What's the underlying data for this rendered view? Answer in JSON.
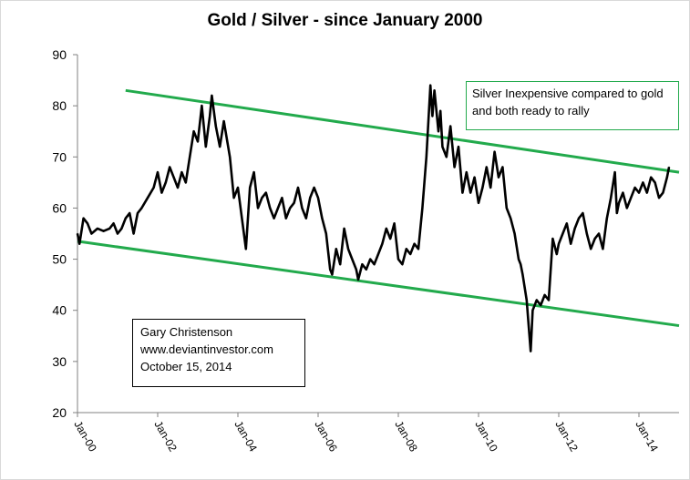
{
  "chart_data": {
    "type": "line",
    "title": "Gold / Silver - since January 2000",
    "xlabel": "",
    "ylabel": "",
    "ylim": [
      20,
      90
    ],
    "yticks": [
      20,
      30,
      40,
      50,
      60,
      70,
      80,
      90
    ],
    "xlim": [
      2000.0,
      2015.0
    ],
    "xticks": [
      {
        "label": "Jan-00",
        "value": 2000
      },
      {
        "label": "Jan-02",
        "value": 2002
      },
      {
        "label": "Jan-04",
        "value": 2004
      },
      {
        "label": "Jan-06",
        "value": 2006
      },
      {
        "label": "Jan-08",
        "value": 2008
      },
      {
        "label": "Jan-10",
        "value": 2010
      },
      {
        "label": "Jan-12",
        "value": 2012
      },
      {
        "label": "Jan-14",
        "value": 2014
      }
    ],
    "series": [
      {
        "name": "Gold / Silver ratio",
        "color": "#000000",
        "points": [
          [
            2000.0,
            55
          ],
          [
            2000.05,
            53
          ],
          [
            2000.15,
            58
          ],
          [
            2000.25,
            57
          ],
          [
            2000.35,
            55
          ],
          [
            2000.5,
            56
          ],
          [
            2000.65,
            55.5
          ],
          [
            2000.8,
            56
          ],
          [
            2000.9,
            57
          ],
          [
            2001.0,
            55
          ],
          [
            2001.1,
            56
          ],
          [
            2001.2,
            58
          ],
          [
            2001.3,
            59
          ],
          [
            2001.4,
            55
          ],
          [
            2001.5,
            59
          ],
          [
            2001.6,
            60
          ],
          [
            2001.75,
            62
          ],
          [
            2001.9,
            64
          ],
          [
            2002.0,
            67
          ],
          [
            2002.1,
            63
          ],
          [
            2002.2,
            65
          ],
          [
            2002.3,
            68
          ],
          [
            2002.4,
            66
          ],
          [
            2002.5,
            64
          ],
          [
            2002.6,
            67
          ],
          [
            2002.7,
            65
          ],
          [
            2002.8,
            70
          ],
          [
            2002.9,
            75
          ],
          [
            2003.0,
            73
          ],
          [
            2003.1,
            80
          ],
          [
            2003.2,
            72
          ],
          [
            2003.3,
            78
          ],
          [
            2003.35,
            82
          ],
          [
            2003.45,
            76
          ],
          [
            2003.55,
            72
          ],
          [
            2003.65,
            77
          ],
          [
            2003.8,
            70
          ],
          [
            2003.9,
            62
          ],
          [
            2004.0,
            64
          ],
          [
            2004.1,
            58
          ],
          [
            2004.2,
            52
          ],
          [
            2004.3,
            64
          ],
          [
            2004.4,
            67
          ],
          [
            2004.5,
            60
          ],
          [
            2004.6,
            62
          ],
          [
            2004.7,
            63
          ],
          [
            2004.8,
            60
          ],
          [
            2004.9,
            58
          ],
          [
            2005.0,
            60
          ],
          [
            2005.1,
            62
          ],
          [
            2005.2,
            58
          ],
          [
            2005.3,
            60
          ],
          [
            2005.4,
            61
          ],
          [
            2005.5,
            64
          ],
          [
            2005.6,
            60
          ],
          [
            2005.7,
            58
          ],
          [
            2005.8,
            62
          ],
          [
            2005.9,
            64
          ],
          [
            2006.0,
            62
          ],
          [
            2006.1,
            58
          ],
          [
            2006.2,
            55
          ],
          [
            2006.3,
            48
          ],
          [
            2006.35,
            47
          ],
          [
            2006.45,
            52
          ],
          [
            2006.55,
            49
          ],
          [
            2006.65,
            56
          ],
          [
            2006.75,
            52
          ],
          [
            2006.85,
            50
          ],
          [
            2006.95,
            48
          ],
          [
            2007.0,
            46
          ],
          [
            2007.1,
            49
          ],
          [
            2007.2,
            48
          ],
          [
            2007.3,
            50
          ],
          [
            2007.4,
            49
          ],
          [
            2007.5,
            51
          ],
          [
            2007.6,
            53
          ],
          [
            2007.7,
            56
          ],
          [
            2007.8,
            54
          ],
          [
            2007.9,
            57
          ],
          [
            2008.0,
            50
          ],
          [
            2008.1,
            49
          ],
          [
            2008.2,
            52
          ],
          [
            2008.3,
            51
          ],
          [
            2008.4,
            53
          ],
          [
            2008.5,
            52
          ],
          [
            2008.6,
            60
          ],
          [
            2008.7,
            70
          ],
          [
            2008.75,
            77
          ],
          [
            2008.8,
            84
          ],
          [
            2008.85,
            78
          ],
          [
            2008.9,
            83
          ],
          [
            2009.0,
            75
          ],
          [
            2009.05,
            79
          ],
          [
            2009.1,
            72
          ],
          [
            2009.2,
            70
          ],
          [
            2009.3,
            76
          ],
          [
            2009.4,
            68
          ],
          [
            2009.5,
            72
          ],
          [
            2009.6,
            63
          ],
          [
            2009.7,
            67
          ],
          [
            2009.8,
            63
          ],
          [
            2009.9,
            66
          ],
          [
            2010.0,
            61
          ],
          [
            2010.1,
            64
          ],
          [
            2010.2,
            68
          ],
          [
            2010.3,
            64
          ],
          [
            2010.4,
            71
          ],
          [
            2010.5,
            66
          ],
          [
            2010.6,
            68
          ],
          [
            2010.7,
            60
          ],
          [
            2010.8,
            58
          ],
          [
            2010.9,
            55
          ],
          [
            2011.0,
            50
          ],
          [
            2011.05,
            49
          ],
          [
            2011.1,
            47
          ],
          [
            2011.2,
            42
          ],
          [
            2011.25,
            37
          ],
          [
            2011.3,
            32
          ],
          [
            2011.35,
            40
          ],
          [
            2011.45,
            42
          ],
          [
            2011.55,
            41
          ],
          [
            2011.65,
            43
          ],
          [
            2011.75,
            42
          ],
          [
            2011.85,
            54
          ],
          [
            2011.95,
            51
          ],
          [
            2012.0,
            53
          ],
          [
            2012.1,
            55
          ],
          [
            2012.2,
            57
          ],
          [
            2012.3,
            53
          ],
          [
            2012.4,
            56
          ],
          [
            2012.5,
            58
          ],
          [
            2012.6,
            59
          ],
          [
            2012.7,
            55
          ],
          [
            2012.8,
            52
          ],
          [
            2012.9,
            54
          ],
          [
            2013.0,
            55
          ],
          [
            2013.1,
            52
          ],
          [
            2013.2,
            58
          ],
          [
            2013.3,
            62
          ],
          [
            2013.4,
            67
          ],
          [
            2013.45,
            59
          ],
          [
            2013.5,
            61
          ],
          [
            2013.6,
            63
          ],
          [
            2013.7,
            60
          ],
          [
            2013.8,
            62
          ],
          [
            2013.9,
            64
          ],
          [
            2014.0,
            63
          ],
          [
            2014.1,
            65
          ],
          [
            2014.2,
            63
          ],
          [
            2014.3,
            66
          ],
          [
            2014.4,
            65
          ],
          [
            2014.5,
            62
          ],
          [
            2014.6,
            63
          ],
          [
            2014.7,
            66
          ],
          [
            2014.75,
            68
          ]
        ]
      }
    ],
    "trendlines": [
      {
        "name": "upper channel",
        "color": "#22aa4c",
        "from": [
          2001.2,
          83
        ],
        "to": [
          2015.0,
          67
        ]
      },
      {
        "name": "lower channel",
        "color": "#22aa4c",
        "from": [
          2000.0,
          53.5
        ],
        "to": [
          2015.0,
          37
        ]
      }
    ],
    "annotations": {
      "note_lines": [
        "Silver Inexpensive compared to gold",
        "and both ready to rally"
      ],
      "credit_lines": [
        "Gary Christenson",
        "www.deviantinvestor.com",
        "October 15, 2014"
      ]
    }
  }
}
